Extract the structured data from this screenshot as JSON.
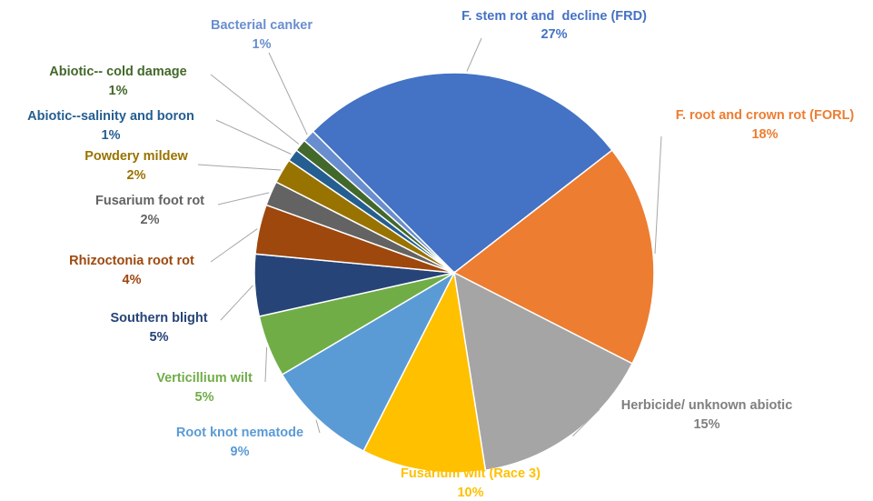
{
  "chart_data": {
    "type": "pie",
    "categories": [
      "F. stem rot and  decline (FRD)",
      "F. root and crown rot (FORL)",
      "Herbicide/ unknown abiotic",
      "Fusarium wilt (Race 3)",
      "Root knot nematode",
      "Verticillium wilt",
      "Southern blight",
      "Rhizoctonia root rot",
      "Fusarium foot rot",
      "Powdery mildew",
      "Abiotic--salinity and boron",
      "Abiotic-- cold damage",
      "Bacterial canker"
    ],
    "values": [
      27,
      18,
      15,
      10,
      9,
      5,
      5,
      4,
      2,
      2,
      1,
      1,
      1
    ],
    "value_labels": [
      "27%",
      "18%",
      "15%",
      "10%",
      "9%",
      "5%",
      "5%",
      "4%",
      "2%",
      "2%",
      "1%",
      "1%",
      "1%"
    ],
    "colors": [
      "#4472c4",
      "#ed7d31",
      "#a5a5a5",
      "#ffc000",
      "#5b9bd5",
      "#70ad47",
      "#264478",
      "#9e480e",
      "#636363",
      "#997300",
      "#255e91",
      "#43682b",
      "#698ed0"
    ]
  }
}
